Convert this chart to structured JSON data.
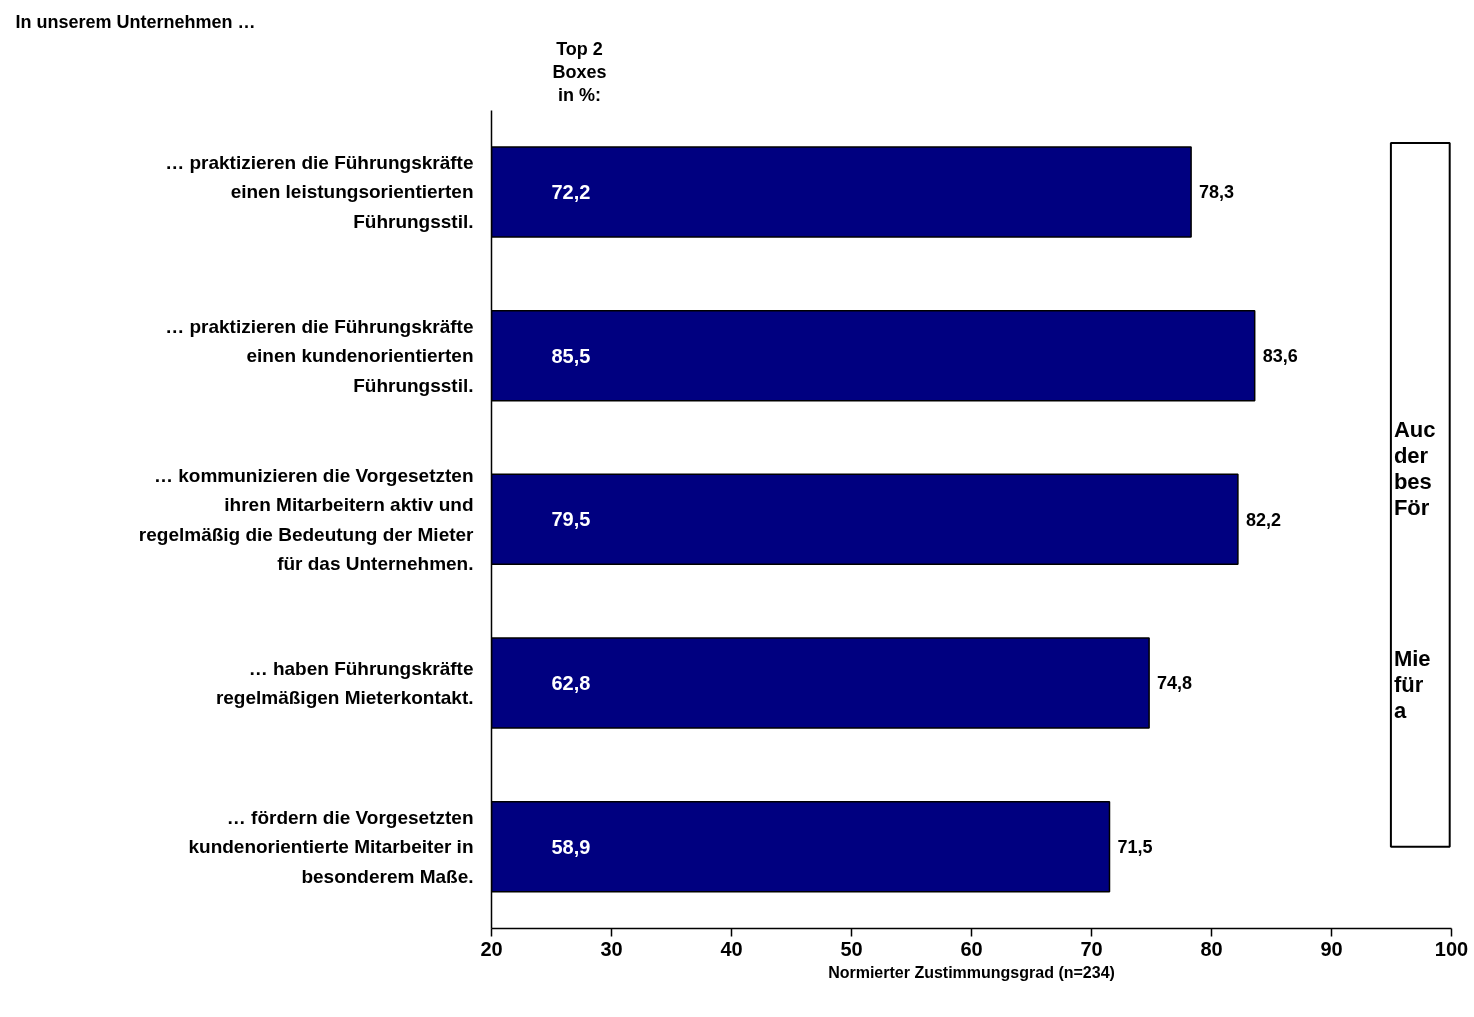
{
  "chart_data": {
    "type": "bar",
    "orientation": "horizontal",
    "title": "In unserem Unternehmen …",
    "xlabel": "Normierter Zustimmungsgrad (n=234)",
    "categories": [
      "… praktizieren die Führungskräfte\neinen leistungsorientierten\nFührungsstil.",
      "… praktizieren die Führungskräfte\neinen kundenorientierten\nFührungsstil.",
      "… kommunizieren die Vorgesetzten\nihren Mitarbeitern aktiv und\nregelmäßig die Bedeutung der Mieter\nfür das Unternehmen.",
      "… haben Führungskräfte\nregelmäßigen Mieterkontakt.",
      "… fördern die Vorgesetzten\nkundenorientierte Mitarbeiter in\nbesonderem Maße."
    ],
    "values": [
      78.3,
      83.6,
      82.2,
      74.8,
      71.5
    ],
    "value_labels": [
      "78,3",
      "83,6",
      "82,2",
      "74,8",
      "71,5"
    ],
    "color": "#000080",
    "xlim": [
      20,
      100
    ],
    "xticks": [
      20,
      30,
      40,
      50,
      60,
      70,
      80,
      90,
      100
    ],
    "grid": false,
    "annotations": [
      {
        "text": "Top 2\nBoxes\nin %:"
      },
      "72,2",
      "85,5",
      "79,5",
      "62,8",
      "58,9",
      "Auc\nder\nbes\nFör",
      "Mie\nfür\na"
    ]
  }
}
